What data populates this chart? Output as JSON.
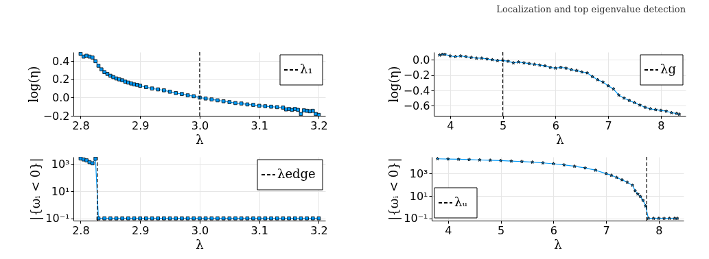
{
  "chart_data": [
    {
      "type": "line",
      "annotations": [
        "Localization and top eigenvalue detection"
      ],
      "xlabel": "λ",
      "ylabel": "log(η)",
      "marker": "square",
      "grid": true,
      "legend": "top right",
      "xlim": [
        2.788,
        3.211
      ],
      "ylim": [
        -0.2,
        0.5
      ],
      "xticks": [
        2.8,
        2.9,
        {
          "value": 3.0,
          "label": "3.0"
        },
        3.1,
        3.2
      ],
      "yticks": [
        {
          "value": -0.2,
          "label": "−0.2"
        },
        {
          "value": 0.0,
          "label": "0.0"
        },
        0.2,
        0.4
      ],
      "ref_lines": [
        {
          "axis": "x",
          "value": 3.0,
          "label": "λ₁",
          "color": "#000000",
          "line_style": "dashed"
        }
      ],
      "series": [
        {
          "color": "#009afa",
          "x": [
            2.8,
            2.805,
            2.81,
            2.815,
            2.82,
            2.825,
            2.83,
            2.835,
            2.84,
            2.845,
            2.85,
            2.855,
            2.86,
            2.865,
            2.87,
            2.875,
            2.88,
            2.885,
            2.89,
            2.895,
            2.9,
            2.91,
            2.92,
            2.93,
            2.94,
            2.95,
            2.96,
            2.97,
            2.98,
            2.99,
            3.0,
            3.01,
            3.02,
            3.03,
            3.04,
            3.05,
            3.06,
            3.07,
            3.08,
            3.09,
            3.1,
            3.11,
            3.12,
            3.13,
            3.14,
            3.145,
            3.15,
            3.155,
            3.16,
            3.165,
            3.17,
            3.175,
            3.18,
            3.185,
            3.19,
            3.195,
            3.2
          ],
          "values": [
            0.48,
            0.45,
            0.46,
            0.45,
            0.44,
            0.4,
            0.35,
            0.31,
            0.28,
            0.26,
            0.24,
            0.225,
            0.21,
            0.2,
            0.19,
            0.175,
            0.165,
            0.155,
            0.145,
            0.14,
            0.13,
            0.115,
            0.1,
            0.09,
            0.08,
            0.065,
            0.05,
            0.04,
            0.025,
            0.015,
            0.0,
            -0.01,
            -0.02,
            -0.03,
            -0.04,
            -0.05,
            -0.06,
            -0.065,
            -0.075,
            -0.08,
            -0.09,
            -0.095,
            -0.1,
            -0.105,
            -0.11,
            -0.13,
            -0.125,
            -0.135,
            -0.125,
            -0.135,
            -0.18,
            -0.14,
            -0.145,
            -0.15,
            -0.145,
            -0.18,
            -0.19
          ]
        }
      ]
    },
    {
      "type": "line",
      "xlabel": "λ",
      "ylabel": "log(η)",
      "marker": "star",
      "grid": true,
      "legend": "top right",
      "xlim": [
        3.69,
        8.47
      ],
      "ylim": [
        -0.73,
        0.1
      ],
      "xticks": [
        4,
        5,
        6,
        7,
        8
      ],
      "yticks": [
        {
          "value": -0.6,
          "label": "−0.6"
        },
        {
          "value": -0.4,
          "label": "−0.4"
        },
        {
          "value": -0.2,
          "label": "−0.2"
        },
        {
          "value": 0.0,
          "label": "0.0"
        }
      ],
      "ref_lines": [
        {
          "axis": "x",
          "value": 5,
          "label": "λg",
          "color": "#000000",
          "line_style": "dashed"
        }
      ],
      "series": [
        {
          "color": "#009afa",
          "x": [
            3.8,
            3.85,
            3.9,
            4.0,
            4.1,
            4.2,
            4.3,
            4.4,
            4.5,
            4.6,
            4.7,
            4.8,
            4.9,
            5.0,
            5.1,
            5.2,
            5.3,
            5.4,
            5.5,
            5.6,
            5.7,
            5.8,
            5.9,
            6.0,
            6.1,
            6.2,
            6.3,
            6.4,
            6.5,
            6.6,
            6.7,
            6.8,
            6.9,
            7.0,
            7.1,
            7.2,
            7.3,
            7.4,
            7.5,
            7.6,
            7.7,
            7.8,
            7.9,
            8.0,
            8.1,
            8.2,
            8.3,
            8.35
          ],
          "values": [
            0.06,
            0.07,
            0.07,
            0.05,
            0.04,
            0.05,
            0.04,
            0.03,
            0.02,
            0.02,
            0.01,
            0.0,
            -0.01,
            -0.01,
            -0.02,
            -0.04,
            -0.03,
            -0.04,
            -0.05,
            -0.06,
            -0.07,
            -0.08,
            -0.1,
            -0.11,
            -0.1,
            -0.11,
            -0.13,
            -0.14,
            -0.16,
            -0.17,
            -0.22,
            -0.26,
            -0.29,
            -0.34,
            -0.38,
            -0.46,
            -0.5,
            -0.53,
            -0.56,
            -0.59,
            -0.62,
            -0.64,
            -0.65,
            -0.66,
            -0.67,
            -0.69,
            -0.7,
            -0.71
          ]
        }
      ]
    },
    {
      "type": "line",
      "xlabel": "λ",
      "ylabel": "|{ωᵢ < 0}|",
      "marker": "square",
      "grid": true,
      "legend": "top right",
      "log": "y",
      "xlim": [
        2.788,
        3.211
      ],
      "ylim": [
        0.068,
        3400
      ],
      "xticks": [
        2.8,
        2.9,
        {
          "value": 3.0,
          "label": "3.0"
        },
        3.1,
        3.2
      ],
      "yticks": [
        {
          "value": 0.1,
          "label": "10⁻¹"
        },
        {
          "value": 10,
          "label": "10¹"
        },
        {
          "value": 1000,
          "label": "10³"
        }
      ],
      "ref_lines": [
        {
          "axis": "x",
          "value": 2.828,
          "label": "λedge",
          "color": "#000000",
          "line_style": "dashed"
        }
      ],
      "series": [
        {
          "color": "#009afa",
          "x": [
            2.8,
            2.805,
            2.81,
            2.815,
            2.82,
            2.825,
            2.83,
            2.84,
            2.85,
            2.86,
            2.87,
            2.88,
            2.89,
            2.9,
            2.91,
            2.92,
            2.93,
            2.94,
            2.95,
            2.96,
            2.97,
            2.98,
            2.99,
            3.0,
            3.01,
            3.02,
            3.03,
            3.04,
            3.05,
            3.06,
            3.07,
            3.08,
            3.09,
            3.1,
            3.11,
            3.12,
            3.13,
            3.14,
            3.15,
            3.16,
            3.17,
            3.18,
            3.19,
            3.2
          ],
          "values": [
            2600,
            2200,
            1900,
            1400,
            1150,
            2500,
            0.1,
            0.1,
            0.1,
            0.1,
            0.1,
            0.1,
            0.1,
            0.1,
            0.1,
            0.1,
            0.1,
            0.1,
            0.1,
            0.1,
            0.1,
            0.1,
            0.1,
            0.1,
            0.1,
            0.1,
            0.1,
            0.1,
            0.1,
            0.1,
            0.1,
            0.1,
            0.1,
            0.1,
            0.1,
            0.1,
            0.1,
            0.1,
            0.1,
            0.1,
            0.1,
            0.1,
            0.1,
            0.1
          ]
        }
      ]
    },
    {
      "type": "line",
      "xlabel": "λ",
      "ylabel": "|{ωᵢ < 0}|",
      "marker": "star",
      "grid": true,
      "legend": "bottom left",
      "log": "y",
      "xlim": [
        3.69,
        8.47
      ],
      "ylim": [
        0.063,
        31000
      ],
      "xticks": [
        4,
        5,
        6,
        7,
        8
      ],
      "yticks": [
        {
          "value": 0.1,
          "label": "10⁻¹"
        },
        {
          "value": 10,
          "label": "10¹"
        },
        {
          "value": 1000,
          "label": "10³"
        }
      ],
      "ref_lines": [
        {
          "axis": "x",
          "value": 7.77,
          "label": "λᵤ",
          "color": "#000000",
          "line_style": "dashed"
        }
      ],
      "series": [
        {
          "color": "#009afa",
          "x": [
            3.8,
            4.0,
            4.2,
            4.4,
            4.6,
            4.8,
            5.0,
            5.2,
            5.4,
            5.6,
            5.8,
            6.0,
            6.2,
            6.4,
            6.6,
            6.8,
            7.0,
            7.1,
            7.2,
            7.3,
            7.4,
            7.5,
            7.55,
            7.6,
            7.65,
            7.7,
            7.75,
            7.8,
            7.9,
            8.0,
            8.1,
            8.2,
            8.3,
            8.35
          ],
          "values": [
            21000,
            20000,
            19000,
            18000,
            16500,
            15500,
            14500,
            13000,
            12000,
            10500,
            9000,
            7600,
            6000,
            4500,
            3200,
            2000,
            1000,
            700,
            450,
            280,
            170,
            90,
            30,
            15,
            9,
            4,
            1.3,
            0.1,
            0.1,
            0.1,
            0.1,
            0.1,
            0.1,
            0.1
          ]
        }
      ]
    }
  ]
}
